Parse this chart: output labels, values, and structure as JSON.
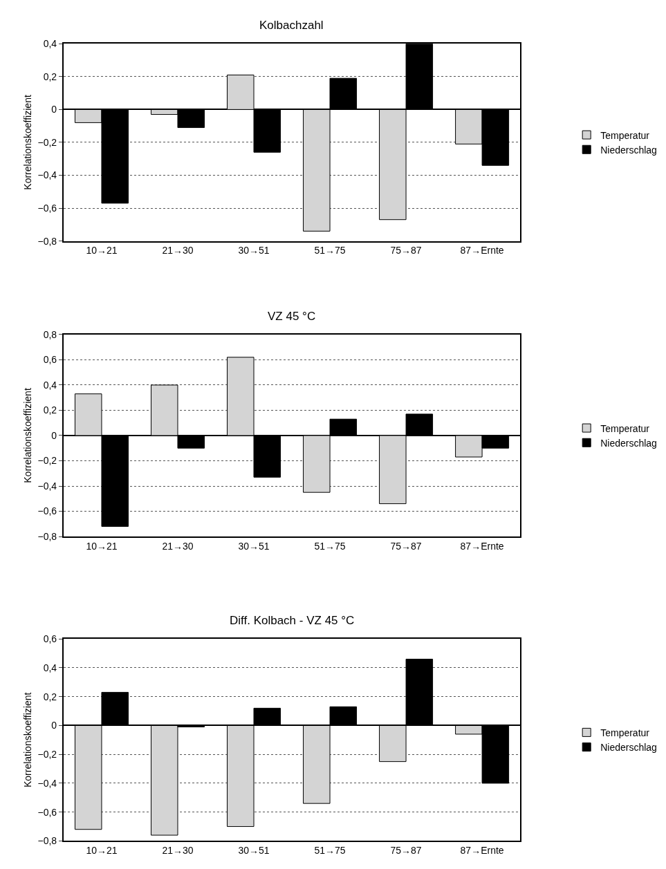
{
  "chart_data": [
    {
      "type": "bar",
      "title": "Kolbachzahl",
      "ylabel": "Korrelationskoeffizient",
      "categories": [
        "10→21",
        "21→30",
        "30→51",
        "51→75",
        "75→87",
        "87→Ernte"
      ],
      "series": [
        {
          "name": "Temperatur",
          "color": "#d4d4d4",
          "values": [
            -0.08,
            -0.03,
            0.21,
            -0.74,
            -0.67,
            -0.21
          ]
        },
        {
          "name": "Niederschlag",
          "color": "#000000",
          "values": [
            -0.57,
            -0.11,
            -0.26,
            0.19,
            0.4,
            -0.34
          ]
        }
      ],
      "ylim": [
        -0.8,
        0.4
      ],
      "yticks": [
        {
          "value": -0.8,
          "label": "−0,8"
        },
        {
          "value": -0.6,
          "label": "−0,6"
        },
        {
          "value": -0.4,
          "label": "−0,4"
        },
        {
          "value": -0.2,
          "label": "−0,2"
        },
        0,
        {
          "value": 0.2,
          "label": "0,2"
        },
        {
          "value": 0.4,
          "label": "0,4"
        }
      ],
      "grid": "y",
      "legend": "right"
    },
    {
      "type": "bar",
      "title": "VZ 45 °C",
      "ylabel": "Korrelationskoeffizient",
      "categories": [
        "10→21",
        "21→30",
        "30→51",
        "51→75",
        "75→87",
        "87→Ernte"
      ],
      "series": [
        {
          "name": "Temperatur",
          "color": "#d4d4d4",
          "values": [
            0.33,
            0.4,
            0.62,
            -0.45,
            -0.54,
            -0.17
          ]
        },
        {
          "name": "Niederschlag",
          "color": "#000000",
          "values": [
            -0.72,
            -0.1,
            -0.33,
            0.13,
            0.17,
            -0.1
          ]
        }
      ],
      "ylim": [
        -0.8,
        0.8
      ],
      "yticks": [
        {
          "value": -0.8,
          "label": "−0,8"
        },
        {
          "value": -0.6,
          "label": "−0,6"
        },
        {
          "value": -0.4,
          "label": "−0,4"
        },
        {
          "value": -0.2,
          "label": "−0,2"
        },
        0,
        {
          "value": 0.2,
          "label": "0,2"
        },
        {
          "value": 0.4,
          "label": "0,4"
        },
        {
          "value": 0.6,
          "label": "0,6"
        },
        {
          "value": 0.8,
          "label": "0,8"
        }
      ],
      "grid": "y",
      "legend": "right"
    },
    {
      "type": "bar",
      "title": "Diff. Kolbach - VZ 45 °C",
      "ylabel": "Korrelationskoeffizient",
      "categories": [
        "10→21",
        "21→30",
        "30→51",
        "51→75",
        "75→87",
        "87→Ernte"
      ],
      "series": [
        {
          "name": "Temperatur",
          "color": "#d4d4d4",
          "values": [
            -0.72,
            -0.76,
            -0.7,
            -0.54,
            -0.25,
            -0.06
          ]
        },
        {
          "name": "Niederschlag",
          "color": "#000000",
          "values": [
            0.23,
            -0.01,
            0.12,
            0.13,
            0.46,
            -0.4
          ]
        }
      ],
      "ylim": [
        -0.8,
        0.6
      ],
      "yticks": [
        {
          "value": -0.8,
          "label": "−0,8"
        },
        {
          "value": -0.6,
          "label": "−0,6"
        },
        {
          "value": -0.4,
          "label": "−0,4"
        },
        {
          "value": -0.2,
          "label": "−0,2"
        },
        0,
        {
          "value": 0.2,
          "label": "0,2"
        },
        {
          "value": 0.4,
          "label": "0,4"
        },
        {
          "value": 0.6,
          "label": "0,6"
        }
      ],
      "grid": "y",
      "legend": "right"
    }
  ]
}
